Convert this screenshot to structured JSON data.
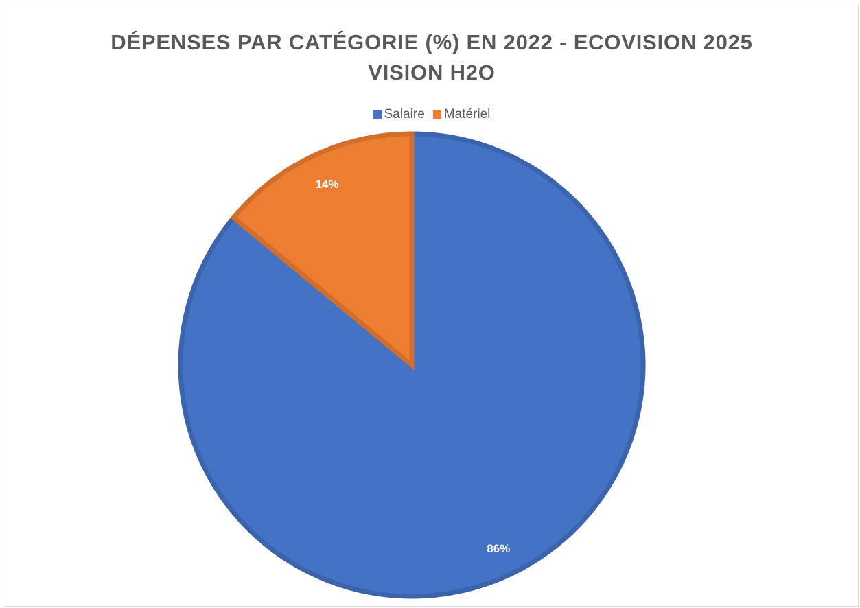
{
  "chart_data": {
    "type": "pie",
    "title_lines": [
      "DÉPENSES PAR CATÉGORIE (%) EN 2022 - ECOVISION 2025",
      "VISION H2O"
    ],
    "categories": [
      "Salaire",
      "Matériel"
    ],
    "values": [
      86,
      14
    ],
    "data_labels": [
      "86%",
      "14%"
    ],
    "colors": [
      "#4472c4",
      "#ed7d31"
    ],
    "legend_position": "top",
    "start_angle_deg": 0,
    "direction": "clockwise"
  }
}
